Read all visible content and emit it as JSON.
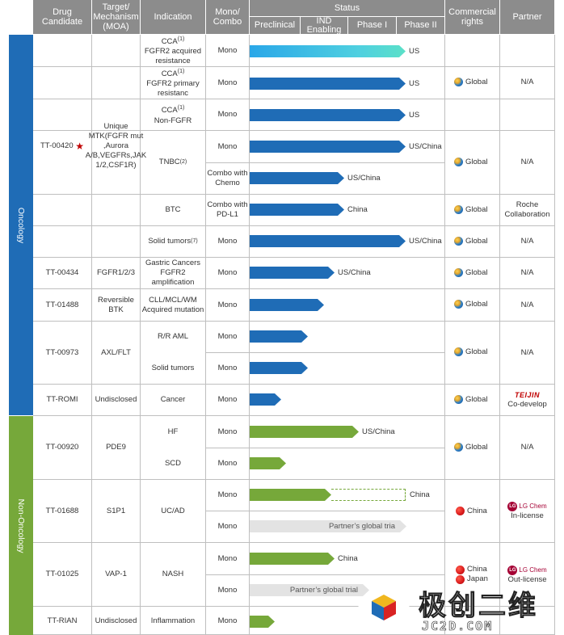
{
  "headers": {
    "drug_candidate": "Drug Candidate",
    "target": "Target/ Mechanism (MOA)",
    "indication": "Indication",
    "mono_combo": "Mono/ Combo",
    "status": "Status",
    "preclinical": "Preclinical",
    "ind": "IND Enabling",
    "phase1": "Phase I",
    "phase2": "Phase II",
    "commercial": "Commercial rights",
    "partner": "Partner"
  },
  "sections": {
    "oncology": "Oncology",
    "non_oncology": "Non-Oncology"
  },
  "drugs": {
    "d1": {
      "name": "TT-00420",
      "target": "Unique MTK(FGFR mut ,Aurora A/B,VEGFRs,JAK 1/2,CSF1R)"
    },
    "d2": {
      "name": "TT-00434",
      "target": "FGFR1/2/3"
    },
    "d3": {
      "name": "TT-01488",
      "target": "Reversible BTK"
    },
    "d4": {
      "name": "TT-00973",
      "target": "AXL/FLT"
    },
    "d5": {
      "name": "TT-ROMI",
      "target": "Undisclosed"
    },
    "d6": {
      "name": "TT-00920",
      "target": "PDE9"
    },
    "d7": {
      "name": "TT-01688",
      "target": "S1P1"
    },
    "d8": {
      "name": "TT-01025",
      "target": "VAP-1"
    },
    "d9": {
      "name": "TT-RIAN",
      "target": "Undisclosed"
    }
  },
  "rows": [
    {
      "ind_main": "CCA",
      "ind_sup": "(1)",
      "ind_rest": "FGFR2 acquired resistance",
      "combo": "Mono",
      "progress": 0.99,
      "region": "US"
    },
    {
      "ind_main": "CCA",
      "ind_sup": "(1)",
      "ind_rest": "FGFR2 primary resistanc",
      "combo": "Mono",
      "progress": 0.99,
      "region": "US"
    },
    {
      "ind_main": "CCA",
      "ind_sup": "(1)",
      "ind_rest": "Non-FGFR",
      "combo": "Mono",
      "progress": 0.99,
      "region": "US"
    },
    {
      "ind_main": "TNBC",
      "ind_sup": "(2)",
      "ind_rest": "",
      "combo": "Mono",
      "progress": 0.99,
      "region": "US/China"
    },
    {
      "combo": "Combo with Chemo",
      "progress": 0.6,
      "region": "US/China"
    },
    {
      "ind_main": "BTC",
      "combo": "Combo with PD-L1",
      "progress": 0.6,
      "region": "China"
    },
    {
      "ind_main": "Solid tumors",
      "ind_sup": "(7)",
      "combo": "Mono",
      "progress": 0.99,
      "region": "US/China"
    },
    {
      "ind_main": "Gastric Cancers FGFR2 amplification",
      "combo": "Mono",
      "progress": 0.54,
      "region": "US/China"
    },
    {
      "ind_main": "CLL/MCL/WM Acquired mutation",
      "combo": "Mono",
      "progress": 0.47,
      "region": ""
    },
    {
      "ind_main": "R/R AML",
      "combo": "Mono",
      "progress": 0.37,
      "region": ""
    },
    {
      "ind_main": "Solid tumors",
      "combo": "Mono",
      "progress": 0.37,
      "region": ""
    },
    {
      "ind_main": "Cancer",
      "combo": "Mono",
      "progress": 0.2,
      "region": ""
    },
    {
      "ind_main": "HF",
      "combo": "Mono",
      "progress": 0.69,
      "region": "US/China"
    },
    {
      "ind_main": "SCD",
      "combo": "Mono",
      "progress": 0.23,
      "region": ""
    },
    {
      "ind_main": "UC/AD",
      "combo": "Mono",
      "progress": 0.52,
      "region": "China"
    },
    {
      "combo": "Mono",
      "partner_trial": "Partner’s global tria"
    },
    {
      "ind_main": "NASH",
      "combo": "Mono",
      "progress": 0.54,
      "region": "China"
    },
    {
      "combo": "Mono",
      "partner_trial": "Partner’s global trial"
    },
    {
      "ind_main": "Inflammation",
      "combo": "Mono",
      "progress": 0.16,
      "region": ""
    }
  ],
  "rights": {
    "global": "Global",
    "china": "China",
    "china_japan_1": "China",
    "china_japan_2": "Japan"
  },
  "partners": {
    "na": "N/A",
    "roche": "Roche Collaboration",
    "teijin_logo": "TEIJIN",
    "teijin_text": "Co-develop",
    "lg_logo": "LG Chem",
    "lg_text_1": "In-license",
    "lg_text_2": "Out-license"
  },
  "watermark": {
    "cn": "极创二维",
    "en": "JC2D.COM"
  },
  "colors": {
    "oncology": "#1f6cb6",
    "non_oncology": "#76a83a",
    "header": "#8c8c8c"
  }
}
